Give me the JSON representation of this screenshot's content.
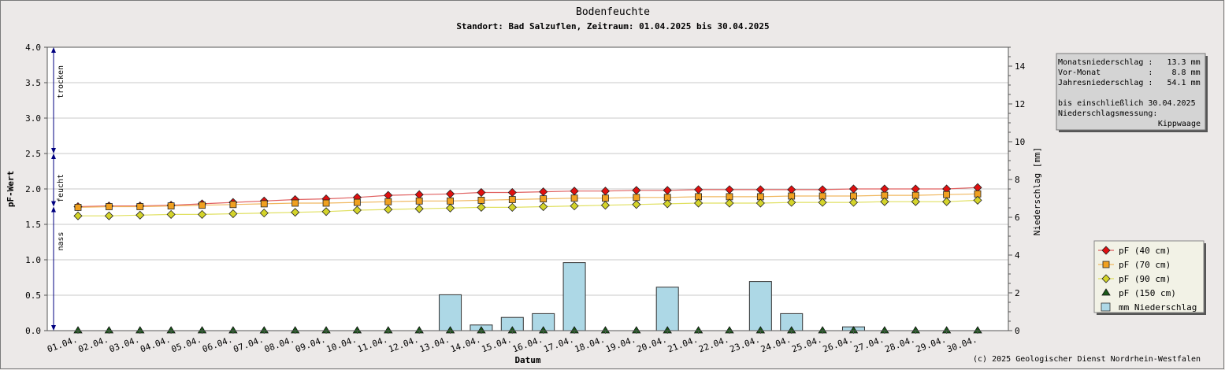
{
  "chart_data": {
    "type": "line",
    "title": "Bodenfeuchte",
    "subtitle": "Standort: Bad Salzuflen, Zeitraum: 01.04.2025 bis 30.04.2025",
    "xlabel": "Datum",
    "ylabel": "pF-Wert",
    "y2label": "Niederschlag [mm]",
    "ylim": [
      0,
      4
    ],
    "y2lim": [
      0,
      15
    ],
    "yticks": [
      "0.0",
      "0.5",
      "1.0",
      "1.5",
      "2.0",
      "2.5",
      "3.0",
      "3.5",
      "4.0"
    ],
    "y2ticks": [
      "0",
      "2",
      "4",
      "6",
      "8",
      "10",
      "12",
      "14"
    ],
    "grid": true,
    "categories": [
      "01.04.",
      "02.04.",
      "03.04.",
      "04.04.",
      "05.04.",
      "06.04.",
      "07.04.",
      "08.04.",
      "09.04.",
      "10.04.",
      "11.04.",
      "12.04.",
      "13.04.",
      "14.04.",
      "15.04.",
      "16.04.",
      "17.04.",
      "18.04.",
      "19.04.",
      "20.04.",
      "21.04.",
      "22.04.",
      "23.04.",
      "24.04.",
      "25.04.",
      "26.04.",
      "27.04.",
      "28.04.",
      "29.04.",
      "30.04."
    ],
    "series": [
      {
        "name": "pF (40 cm)",
        "kind": "line",
        "marker": "diamond",
        "color": "#e01010",
        "line_color": "#e06060",
        "values": [
          1.75,
          1.76,
          1.76,
          1.77,
          1.79,
          1.81,
          1.83,
          1.85,
          1.86,
          1.88,
          1.91,
          1.92,
          1.93,
          1.95,
          1.95,
          1.96,
          1.97,
          1.97,
          1.98,
          1.98,
          1.99,
          1.99,
          1.99,
          1.99,
          1.99,
          2.0,
          2.0,
          2.0,
          2.0,
          2.02
        ]
      },
      {
        "name": "pF (70 cm)",
        "kind": "line",
        "marker": "square",
        "color": "#f0a020",
        "line_color": "#f0b860",
        "values": [
          1.74,
          1.75,
          1.75,
          1.76,
          1.77,
          1.78,
          1.79,
          1.8,
          1.8,
          1.81,
          1.82,
          1.83,
          1.83,
          1.84,
          1.85,
          1.86,
          1.87,
          1.87,
          1.88,
          1.88,
          1.89,
          1.89,
          1.89,
          1.9,
          1.9,
          1.9,
          1.91,
          1.91,
          1.92,
          1.93
        ]
      },
      {
        "name": "pF (90 cm)",
        "kind": "line",
        "marker": "diamond",
        "color": "#d4d42a",
        "line_color": "#e0e060",
        "values": [
          1.62,
          1.62,
          1.63,
          1.64,
          1.64,
          1.65,
          1.66,
          1.67,
          1.68,
          1.7,
          1.71,
          1.72,
          1.73,
          1.74,
          1.74,
          1.75,
          1.76,
          1.77,
          1.78,
          1.79,
          1.8,
          1.8,
          1.8,
          1.81,
          1.81,
          1.81,
          1.82,
          1.82,
          1.82,
          1.84
        ]
      },
      {
        "name": "pF (150 cm)",
        "kind": "line",
        "marker": "triangle",
        "color": "#1a5a1a",
        "line_color": "none",
        "values": [
          0,
          0,
          0,
          0,
          0,
          0,
          0,
          0,
          0,
          0,
          0,
          0,
          0,
          0,
          0,
          0,
          0,
          0,
          0,
          0,
          0,
          0,
          0,
          0,
          0,
          0,
          0,
          0,
          0,
          0
        ]
      },
      {
        "name": "mm  Niederschlag",
        "kind": "bar",
        "axis": "right",
        "color": "#add8e6",
        "values": [
          0,
          0,
          0,
          0,
          0,
          0,
          0,
          0,
          0,
          0,
          0,
          0,
          1.9,
          0.3,
          0.7,
          0.9,
          3.6,
          0,
          0,
          2.3,
          0,
          0,
          2.6,
          0.9,
          0,
          0.2,
          0,
          0,
          0,
          0
        ]
      }
    ],
    "zones": [
      {
        "label": "trocken",
        "range": [
          2.5,
          4.0
        ]
      },
      {
        "label": "feucht",
        "range": [
          1.75,
          2.5
        ]
      },
      {
        "label": "nass",
        "range": [
          0.0,
          1.75
        ]
      }
    ],
    "legend_position": "right"
  },
  "info": {
    "lines": [
      "Monatsniederschlag :   13.3 mm",
      "Vor-Monat          :    8.8 mm",
      "Jahresniederschlag :   54.1 mm",
      "",
      "bis einschließlich 30.04.2025",
      "Niederschlagsmessung:",
      "Kippwaage"
    ]
  },
  "copyright": "(c) 2025 Geologischer Dienst Nordrhein-Westfalen",
  "colors": {
    "background": "#ece9e8",
    "plot": "#ffffff",
    "grid": "#c8c8c8",
    "info_box": "#d4d4d4",
    "legend_box": "#f2f2e6",
    "arrow": "#000080"
  }
}
